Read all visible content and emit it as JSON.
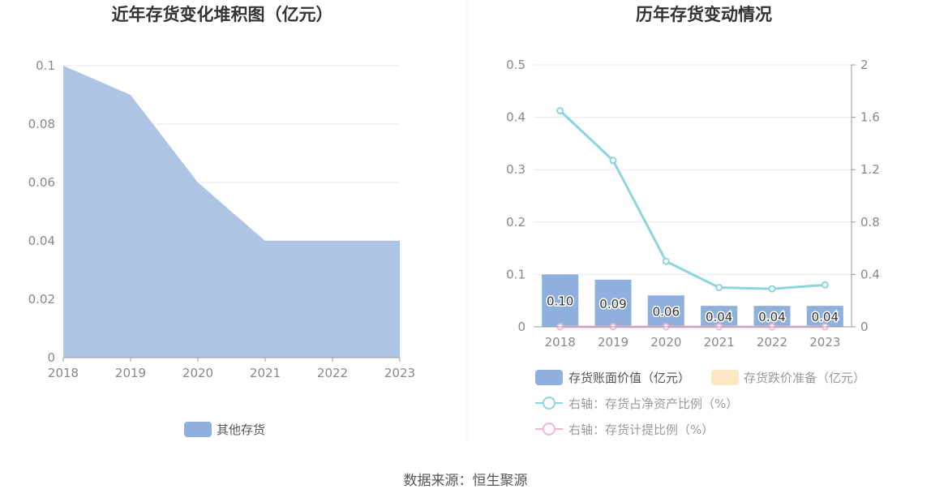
{
  "chart_data": [
    {
      "type": "area",
      "title": "近年存货变化堆积图（亿元）",
      "categories": [
        "2018",
        "2019",
        "2020",
        "2021",
        "2022",
        "2023"
      ],
      "series": [
        {
          "name": "其他存货",
          "values": [
            0.1,
            0.09,
            0.06,
            0.04,
            0.04,
            0.04
          ],
          "color": "#aec4e5"
        }
      ],
      "yticks": [
        "0",
        "0.02",
        "0.04",
        "0.06",
        "0.08",
        "0.1"
      ],
      "ylim": [
        0,
        0.1
      ],
      "grid": true,
      "legend_position": "bottom"
    },
    {
      "type": "bar",
      "title": "历年存货变动情况",
      "categories": [
        "2018",
        "2019",
        "2020",
        "2021",
        "2022",
        "2023"
      ],
      "series": [
        {
          "name": "存货账面价值（亿元）",
          "kind": "bar",
          "axis": "left",
          "values": [
            0.1,
            0.09,
            0.06,
            0.04,
            0.04,
            0.04
          ],
          "labels": [
            "0.10",
            "0.09",
            "0.06",
            "0.04",
            "0.04",
            "0.04"
          ],
          "color": "#8fb0dd"
        },
        {
          "name": "存货跌价准备（亿元）",
          "kind": "bar",
          "axis": "left",
          "values": [
            0,
            0,
            0,
            0,
            0,
            0
          ],
          "color": "#fde7c2"
        },
        {
          "name": "右轴：存货占净资产比例（%）",
          "kind": "line",
          "axis": "right",
          "values": [
            1.65,
            1.27,
            0.5,
            0.3,
            0.29,
            0.32
          ],
          "color": "#8dd5dc"
        },
        {
          "name": "右轴：存货计提比例（%）",
          "kind": "line",
          "axis": "right",
          "values": [
            0,
            0,
            0,
            0,
            0,
            0
          ],
          "color": "#f0b6d8"
        }
      ],
      "yticks_left": [
        "0",
        "0.1",
        "0.2",
        "0.3",
        "0.4",
        "0.5"
      ],
      "yticks_right": [
        "0",
        "0.4",
        "0.8",
        "1.2",
        "1.6",
        "2"
      ],
      "ylim_left": [
        0,
        0.5
      ],
      "ylim_right": [
        0,
        2
      ],
      "grid": true,
      "legend_position": "bottom"
    }
  ],
  "source": "数据来源：恒生聚源"
}
